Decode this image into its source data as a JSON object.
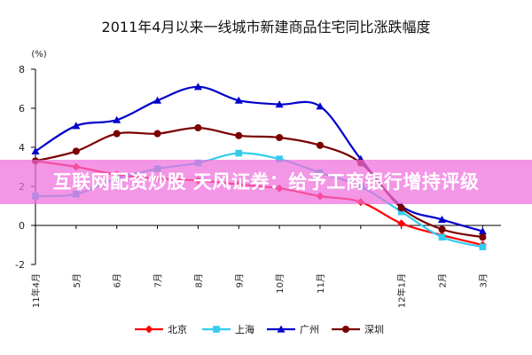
{
  "chart_data": {
    "type": "line",
    "title": "2011年4月以来一线城市新建商品住宅同比涨跌幅度",
    "unit_label": "(%)",
    "ylim": [
      -2,
      8
    ],
    "yticks": [
      -2,
      0,
      2,
      4,
      6,
      8
    ],
    "grid": false,
    "legend_position": "bottom",
    "x_tick_labels": [
      "11年4月",
      "5月",
      "6月",
      "7月",
      "8月",
      "9月",
      "10月",
      "11月",
      "12年1月",
      "2月",
      "3月"
    ],
    "x_tick_positions": [
      0,
      2,
      4,
      6,
      8,
      10,
      12,
      14,
      18,
      20,
      22
    ],
    "x": [
      0,
      2,
      4,
      6,
      8,
      10,
      12,
      14,
      16,
      18,
      20,
      22
    ],
    "series": [
      {
        "name": "北京",
        "color": "#ff0000",
        "marker": "diamond",
        "values": [
          3.3,
          3.0,
          2.6,
          2.4,
          2.3,
          2.1,
          1.9,
          1.5,
          1.2,
          0.1,
          -0.5,
          -1.0
        ]
      },
      {
        "name": "上海",
        "color": "#33ccee",
        "marker": "square",
        "values": [
          1.5,
          1.6,
          2.4,
          2.9,
          3.2,
          3.7,
          3.4,
          2.7,
          2.0,
          0.7,
          -0.6,
          -1.1
        ]
      },
      {
        "name": "广州",
        "color": "#0000cc",
        "marker": "triangle",
        "values": [
          3.8,
          5.1,
          5.4,
          6.4,
          7.1,
          6.4,
          6.2,
          6.1,
          3.4,
          1.0,
          0.3,
          -0.3
        ]
      },
      {
        "name": "深圳",
        "color": "#7a0000",
        "marker": "circle",
        "values": [
          3.3,
          3.8,
          4.7,
          4.7,
          5.0,
          4.6,
          4.5,
          4.1,
          3.2,
          0.9,
          -0.2,
          -0.6
        ]
      }
    ]
  },
  "overlay": {
    "text": "互联网配资炒股 天风证券：给予工商银行增持评级"
  }
}
